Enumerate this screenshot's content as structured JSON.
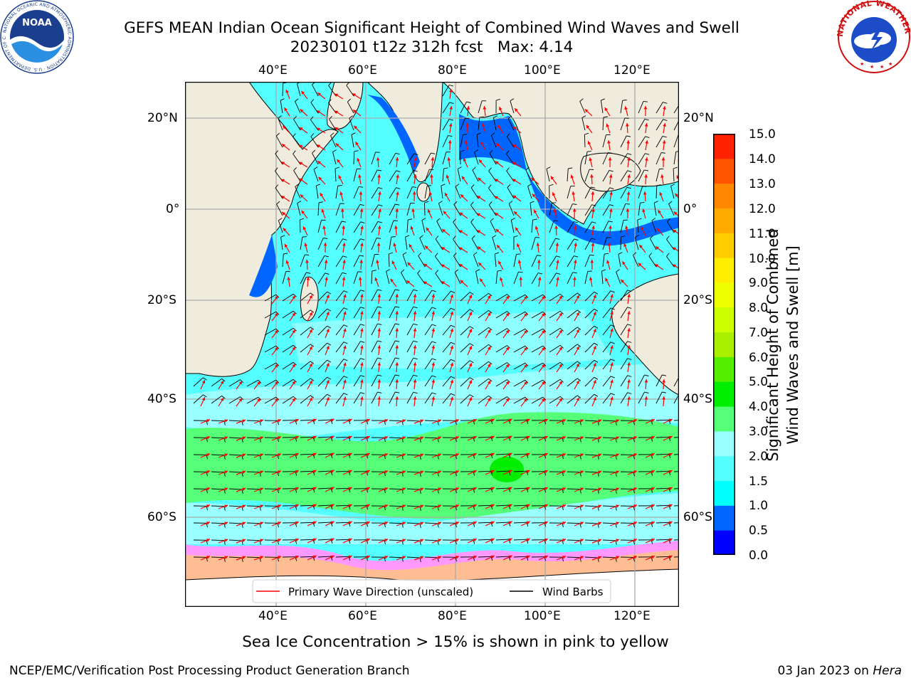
{
  "title": {
    "line1": "GEFS MEAN Indian Ocean Significant Height of Combined Wind Waves and Swell",
    "line2": "20230101 t12z 312h fcst   Max: 4.14"
  },
  "map": {
    "region": "Indian Ocean",
    "lon_ticks": [
      "40°E",
      "60°E",
      "80°E",
      "100°E",
      "120°E"
    ],
    "lat_ticks": [
      "20°N",
      "0°",
      "20°S",
      "40°S",
      "60°S"
    ],
    "max_label": "4.14",
    "land_color": "#efecdd",
    "ice_colors": [
      "#ff66cc",
      "#ff99ff",
      "#ffcc66"
    ]
  },
  "legend": {
    "wave_label": "Primary Wave Direction (unscaled)",
    "wind_label": "Wind Barbs",
    "wave_color": "#ff0000",
    "wind_color": "#000000"
  },
  "colorbar": {
    "label_line1": "Significant Height of Combined",
    "label_line2": "Wind Waves and Swell [m]",
    "ticks": [
      "15.0",
      "14.0",
      "13.0",
      "12.0",
      "11.0",
      "10.0",
      "9.0",
      "8.0",
      "7.0",
      "6.0",
      "5.0",
      "4.0",
      "3.0",
      "2.0",
      "1.5",
      "1.0",
      "0.5",
      "0.0"
    ],
    "colors": [
      "#0000ff",
      "#0066ff",
      "#00ffff",
      "#55ffff",
      "#99ffff",
      "#55ff77",
      "#00ee00",
      "#55ee00",
      "#aaee00",
      "#ccff00",
      "#eeff00",
      "#ffee00",
      "#ffcc00",
      "#ffaa00",
      "#ff8800",
      "#ff5500",
      "#ff2200"
    ]
  },
  "caption": "Sea Ice Concentration > 15% is shown in pink to yellow",
  "footer": {
    "left": "NCEP/EMC/Verification Post Processing Product Generation Branch",
    "right_prefix": "03 Jan 2023 on ",
    "right_italic": "Hera"
  },
  "logos": {
    "noaa_text": "NOAA",
    "noaa_ring": "NATIONAL OCEANIC AND ATMOSPHERIC ADMINISTRATION · U.S. DEPARTMENT OF COMMERCE",
    "nws_ring": "NATIONAL WEATHER SERVICE"
  }
}
